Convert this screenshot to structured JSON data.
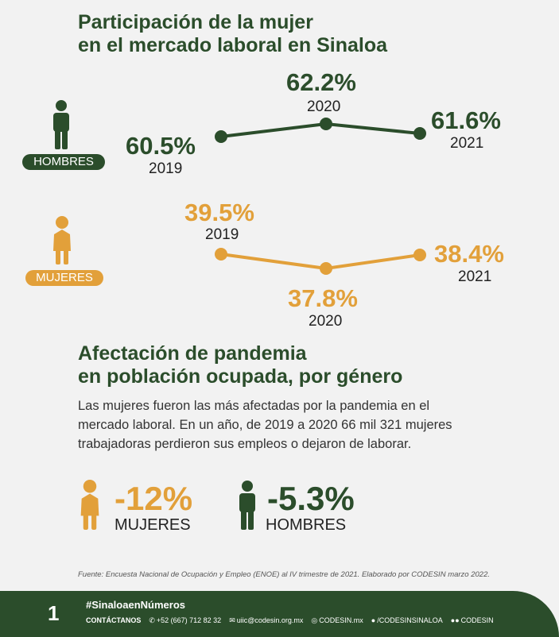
{
  "header": {
    "title_line1": "Participación de la mujer",
    "title_line2": "en el mercado laboral en Sinaloa"
  },
  "colors": {
    "green": "#2b4d2b",
    "orange": "#e2a03a",
    "background": "#f2f2f2"
  },
  "hombres": {
    "badge": "HOMBRES",
    "icon": "man-icon",
    "points": [
      {
        "pct": "60.5%",
        "year": "2019",
        "value": 60.5
      },
      {
        "pct": "62.2%",
        "year": "2020",
        "value": 62.2
      },
      {
        "pct": "61.6%",
        "year": "2021",
        "value": 61.6
      }
    ]
  },
  "mujeres": {
    "badge": "MUJERES",
    "icon": "woman-icon",
    "points": [
      {
        "pct": "39.5%",
        "year": "2019",
        "value": 39.5
      },
      {
        "pct": "37.8%",
        "year": "2020",
        "value": 37.8
      },
      {
        "pct": "38.4%",
        "year": "2021",
        "value": 38.4
      }
    ]
  },
  "section2": {
    "title_line1": "Afectación de pandemia",
    "title_line2": "en población ocupada, por género",
    "body_line1": "Las mujeres fueron las más afectadas por la pandemia en el",
    "body_line2": "mercado laboral. En un año, de 2019 a 2020 66 mil 321 mujeres",
    "body_line3": "trabajadoras perdieron sus empleos o dejaron de laborar."
  },
  "impact": {
    "mujeres_pct": "-12%",
    "mujeres_label": "MUJERES",
    "hombres_pct": "-5.3%",
    "hombres_label": "HOMBRES"
  },
  "source": "Fuente: Encuesta Nacional de Ocupación y Empleo (ENOE) al IV trimestre de 2021. Elaborado por CODESIN marzo 2022.",
  "footer": {
    "page_number": "1",
    "hashtag": "#SinaloaenNúmeros",
    "contact_label": "CONTÁCTANOS",
    "phone": "+52 (667) 712 82 32",
    "email": "uiic@codesin.org.mx",
    "website": "CODESIN.mx",
    "facebook": "/CODESINSINALOA",
    "social": "CODESIN"
  }
}
